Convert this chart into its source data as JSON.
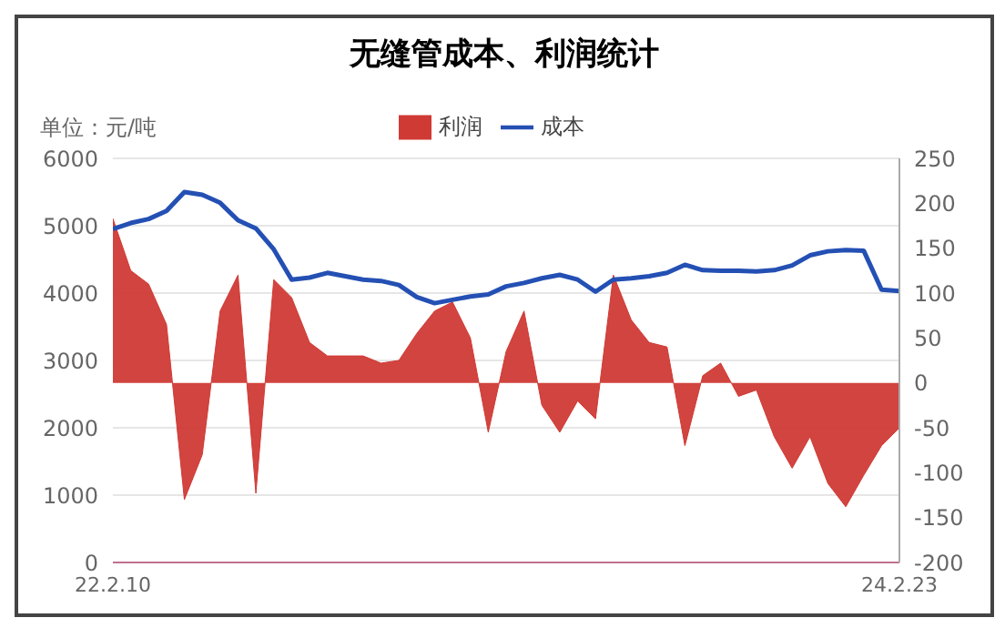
{
  "chart_data": {
    "type": "line",
    "title": "无缝管成本、利润统计",
    "ylabel": "单位：元/吨",
    "categories": [
      "22.2.10",
      null,
      null,
      null,
      null,
      null,
      null,
      null,
      null,
      null,
      null,
      null,
      null,
      null,
      null,
      null,
      null,
      null,
      null,
      null,
      null,
      null,
      null,
      null,
      null,
      null,
      null,
      null,
      null,
      null,
      null,
      null,
      null,
      null,
      null,
      null,
      null,
      null,
      null,
      null,
      null,
      null,
      null,
      null,
      "24.2.23"
    ],
    "series": [
      {
        "name": "利润",
        "type": "area",
        "axis": "y2",
        "color": "#d03a35",
        "values": [
          183,
          125,
          110,
          65,
          -130,
          -80,
          80,
          120,
          -123,
          115,
          95,
          45,
          30,
          30,
          30,
          22,
          25,
          55,
          80,
          90,
          50,
          -55,
          35,
          80,
          -25,
          -55,
          -20,
          -40,
          120,
          70,
          45,
          40,
          -70,
          8,
          22,
          -15,
          -8,
          -60,
          -95,
          -60,
          -112,
          -138,
          -103,
          -70,
          -50
        ]
      },
      {
        "name": "成本",
        "color": "#2450b4",
        "values": [
          4950,
          5040,
          5100,
          5220,
          5500,
          5460,
          5340,
          5080,
          4960,
          4650,
          4200,
          4230,
          4300,
          4250,
          4200,
          4180,
          4120,
          3940,
          3850,
          3900,
          3950,
          3980,
          4100,
          4150,
          4220,
          4270,
          4200,
          4020,
          4200,
          4220,
          4250,
          4300,
          4420,
          4340,
          4330,
          4330,
          4320,
          4340,
          4410,
          4560,
          4620,
          4640,
          4630,
          4050,
          4030
        ]
      }
    ],
    "ylim": [
      0,
      6000
    ],
    "yticks": [
      0,
      1000,
      2000,
      3000,
      4000,
      5000,
      6000
    ],
    "y2lim": [
      -200,
      250
    ],
    "y2ticks": [
      -200,
      -150,
      -100,
      -50,
      0,
      50,
      100,
      150,
      200,
      250
    ],
    "grid": "y",
    "legend": "top",
    "marker": "none"
  }
}
